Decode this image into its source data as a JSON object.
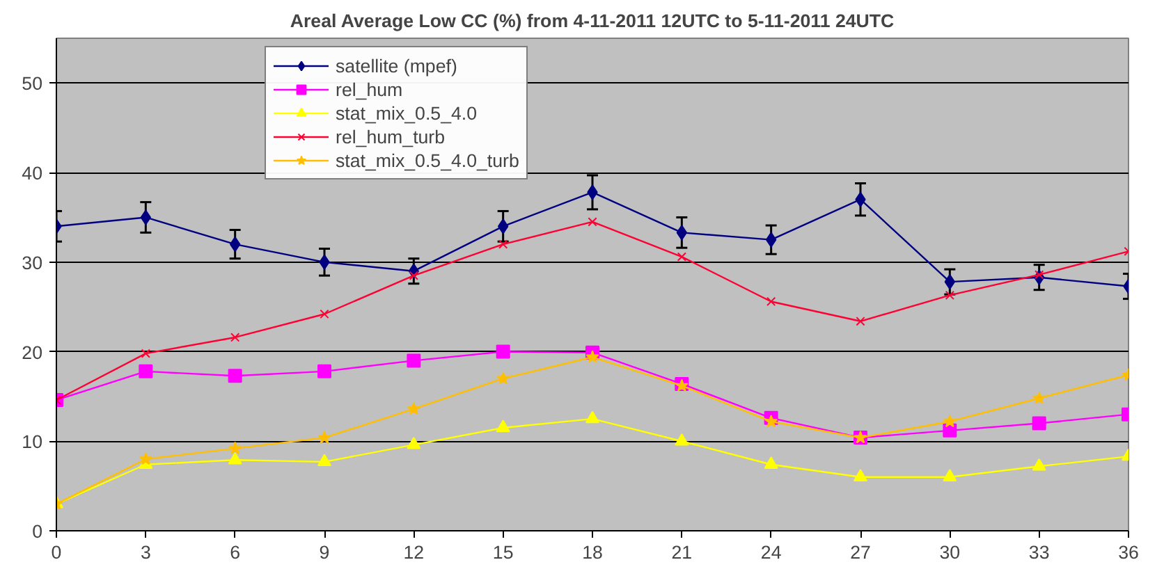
{
  "chart_data": {
    "type": "line",
    "title": "Areal Average Low CC (%) from 4-11-2011 12UTC to 5-11-2011 24UTC",
    "x": [
      0,
      3,
      6,
      9,
      12,
      15,
      18,
      21,
      24,
      27,
      30,
      33,
      36
    ],
    "xlim": [
      0,
      36
    ],
    "xticks": [
      0,
      3,
      6,
      9,
      12,
      15,
      18,
      21,
      24,
      27,
      30,
      33,
      36
    ],
    "ylim": [
      0,
      55
    ],
    "yticks": [
      0,
      10,
      20,
      30,
      40,
      50
    ],
    "grid": "y",
    "legend": "top left",
    "series": [
      {
        "name": "satellite (mpef)",
        "color": "#000080",
        "marker": "diamond",
        "values": [
          34,
          35,
          32,
          30,
          29,
          34,
          37.8,
          33.3,
          32.5,
          37,
          27.8,
          28.3,
          27.3
        ],
        "errors": [
          1.7,
          1.7,
          1.6,
          1.5,
          1.4,
          1.7,
          1.9,
          1.7,
          1.6,
          1.8,
          1.4,
          1.4,
          1.4
        ]
      },
      {
        "name": "rel_hum",
        "color": "#ff00ff",
        "marker": "square",
        "values": [
          14.6,
          17.8,
          17.3,
          17.8,
          19,
          20,
          19.9,
          16.4,
          12.6,
          10.4,
          11.2,
          12,
          13
        ]
      },
      {
        "name": "stat_mix_0.5_4.0",
        "color": "#ffff00",
        "marker": "triangle",
        "values": [
          3,
          7.4,
          7.9,
          7.7,
          9.6,
          11.5,
          12.5,
          10,
          7.4,
          6,
          6,
          7.2,
          8.3
        ]
      },
      {
        "name": "rel_hum_turb",
        "color": "#ff0033",
        "marker": "cross",
        "values": [
          14.6,
          19.8,
          21.6,
          24.2,
          28.5,
          32,
          34.5,
          30.6,
          25.6,
          23.4,
          26.3,
          28.6,
          31.2
        ]
      },
      {
        "name": "stat_mix_0.5_4.0_turb",
        "color": "#ffbf00",
        "marker": "star",
        "values": [
          3,
          8,
          9.2,
          10.4,
          13.6,
          17,
          19.4,
          16.2,
          12.2,
          10.4,
          12.2,
          14.8,
          17.4
        ]
      }
    ]
  }
}
